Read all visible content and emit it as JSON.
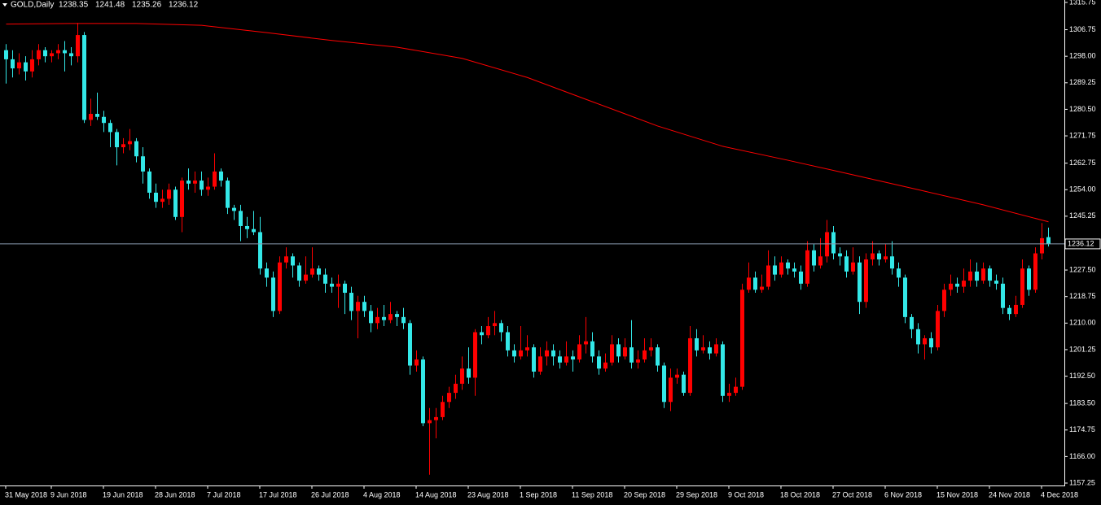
{
  "chart_data": {
    "type": "candlestick",
    "title": "GOLD,Daily",
    "up_color": "#ff0000",
    "down_color": "#33e8e8",
    "ylim": [
      1156.45,
      1316.55
    ],
    "yticks": [
      1315.75,
      1306.75,
      {
        "value": 1298,
        "label": "1298.00"
      },
      1289.25,
      {
        "value": 1280.5,
        "label": "1280.50"
      },
      1271.75,
      1262.75,
      {
        "value": 1254,
        "label": "1254.00"
      },
      1245.25,
      {
        "value": 1227.5,
        "label": "1227.50"
      },
      1218.75,
      {
        "value": 1210,
        "label": "1210.00"
      },
      1201.25,
      {
        "value": 1192.5,
        "label": "1192.50"
      },
      {
        "value": 1183.5,
        "label": "1183.50"
      },
      1174.75,
      {
        "value": 1166,
        "label": "1166.00"
      },
      1157.25
    ],
    "categories": [
      "31 May 2018",
      null,
      null,
      null,
      null,
      null,
      null,
      "9 Jun 2018",
      null,
      null,
      null,
      null,
      null,
      null,
      null,
      "19 Jun 2018",
      null,
      null,
      null,
      null,
      null,
      null,
      null,
      "28 Jun 2018",
      null,
      null,
      null,
      null,
      null,
      null,
      null,
      "7 Jul 2018",
      null,
      null,
      null,
      null,
      null,
      null,
      null,
      "17 Jul 2018",
      null,
      null,
      null,
      null,
      null,
      null,
      null,
      "26 Jul 2018",
      null,
      null,
      null,
      null,
      null,
      null,
      null,
      "4 Aug 2018",
      null,
      null,
      null,
      null,
      null,
      null,
      null,
      "14 Aug 2018",
      null,
      null,
      null,
      null,
      null,
      null,
      null,
      "23 Aug 2018",
      null,
      null,
      null,
      null,
      null,
      null,
      null,
      "1 Sep 2018",
      null,
      null,
      null,
      null,
      null,
      null,
      null,
      "11 Sep 2018",
      null,
      null,
      null,
      null,
      null,
      null,
      null,
      "20 Sep 2018",
      null,
      null,
      null,
      null,
      null,
      null,
      null,
      "29 Sep 2018",
      null,
      null,
      null,
      null,
      null,
      null,
      null,
      "9 Oct 2018",
      null,
      null,
      null,
      null,
      null,
      null,
      null,
      "18 Oct 2018",
      null,
      null,
      null,
      null,
      null,
      null,
      null,
      "27 Oct 2018",
      null,
      null,
      null,
      null,
      null,
      null,
      null,
      "6 Nov 2018",
      null,
      null,
      null,
      null,
      null,
      null,
      null,
      "15 Nov 2018",
      null,
      null,
      null,
      null,
      null,
      null,
      null,
      "24 Nov 2018",
      null,
      null,
      null,
      null,
      null,
      null,
      null,
      "4 Dec 2018",
      null
    ],
    "open": [
      1300,
      1297,
      1294,
      1296,
      1293,
      1297,
      1300,
      1298,
      1299,
      1300,
      1299,
      1298,
      1305,
      1277,
      1279,
      1278,
      1276,
      1273,
      1268,
      1269,
      1270,
      1265,
      1260,
      1253,
      1250,
      1251,
      1254,
      1245,
      1257,
      1256,
      1257,
      1254,
      1255,
      1260,
      1257,
      1248,
      1247,
      1242,
      1241,
      1240,
      1228,
      1225,
      1214,
      1230,
      1232,
      1229,
      1224,
      1226,
      1228,
      1226,
      1223,
      1222,
      1223,
      1220,
      1214,
      1217,
      1214,
      1210,
      1212,
      1211,
      1213,
      1212,
      1210,
      1196,
      1198,
      1177,
      1178,
      1179,
      1184,
      1187,
      1190,
      1195,
      1192,
      1207,
      1206,
      1209,
      1210,
      1207,
      1201,
      1199,
      1201,
      1202,
      1194,
      1199,
      1201,
      1199,
      1197,
      1199,
      1198,
      1203,
      1204,
      1199,
      1195,
      1197,
      1203,
      1199,
      1202,
      1197,
      1198,
      1201,
      1202,
      1196,
      1184,
      1192,
      1193,
      1187,
      1205,
      1201,
      1202,
      1200,
      1203,
      1186,
      1187,
      1189,
      1221,
      1225,
      1221,
      1222,
      1229,
      1226,
      1230,
      1228,
      1227,
      1223,
      1234,
      1229,
      1232,
      1240,
      1233,
      1232,
      1227,
      1230,
      1217,
      1231,
      1233,
      1231,
      1232,
      1228,
      1225,
      1212,
      1208,
      1203,
      1205,
      1202,
      1214,
      1221,
      1223,
      1222,
      1224,
      1227,
      1224,
      1228,
      1224,
      1223,
      1215,
      1213,
      1216,
      1228,
      1221,
      1233,
      1238.35
    ],
    "high": [
      1302,
      1300,
      1299,
      1298,
      1300,
      1302,
      1301,
      1300,
      1302,
      1303,
      1301,
      1309,
      1306,
      1284,
      1286,
      1280,
      1277,
      1274,
      1271,
      1274,
      1271,
      1268,
      1261,
      1256,
      1254,
      1256,
      1255,
      1258,
      1261,
      1260,
      1260,
      1258,
      1266,
      1261,
      1258,
      1249,
      1249,
      1245,
      1247,
      1245,
      1230,
      1227,
      1232,
      1235,
      1233,
      1230,
      1232,
      1235,
      1229,
      1228,
      1225,
      1226,
      1224,
      1222,
      1219,
      1219,
      1216,
      1215,
      1216,
      1217,
      1214,
      1215,
      1211,
      1201,
      1199,
      1182,
      1182,
      1186,
      1189,
      1193,
      1199,
      1202,
      1208,
      1209,
      1212,
      1214,
      1211,
      1209,
      1203,
      1209,
      1206,
      1203,
      1202,
      1204,
      1203,
      1201,
      1204,
      1201,
      1206,
      1212,
      1207,
      1201,
      1200,
      1206,
      1205,
      1205,
      1211,
      1201,
      1205,
      1205,
      1203,
      1197,
      1195,
      1195,
      1194,
      1209,
      1208,
      1206,
      1204,
      1205,
      1204,
      1190,
      1192,
      1223,
      1230,
      1227,
      1226,
      1234,
      1232,
      1232,
      1231,
      1230,
      1229,
      1237,
      1236,
      1238,
      1244,
      1242,
      1235,
      1234,
      1235,
      1232,
      1233,
      1237,
      1234,
      1236,
      1237,
      1230,
      1226,
      1213,
      1210,
      1206,
      1207,
      1216,
      1223,
      1226,
      1225,
      1228,
      1231,
      1230,
      1230,
      1229,
      1226,
      1225,
      1216,
      1219,
      1231,
      1229,
      1235,
      1243,
      1241.48
    ],
    "low": [
      1289,
      1291,
      1292,
      1290,
      1291,
      1295,
      1296,
      1296,
      1297,
      1293,
      1295,
      1296,
      1276,
      1275,
      1277,
      1273,
      1268,
      1262,
      1266,
      1267,
      1263,
      1256,
      1251,
      1248,
      1248,
      1249,
      1244,
      1240,
      1254,
      1253,
      1252,
      1252,
      1254,
      1255,
      1246,
      1244,
      1237,
      1238,
      1239,
      1226,
      1222,
      1212,
      1213,
      1228,
      1225,
      1222,
      1223,
      1225,
      1224,
      1220,
      1220,
      1215,
      1213,
      1211,
      1205,
      1212,
      1207,
      1208,
      1209,
      1210,
      1209,
      1208,
      1193,
      1194,
      1176,
      1160,
      1172,
      1178,
      1182,
      1185,
      1188,
      1190,
      1186,
      1203,
      1205,
      1206,
      1204,
      1199,
      1197,
      1198,
      1199,
      1192,
      1193,
      1196,
      1196,
      1195,
      1196,
      1194,
      1197,
      1200,
      1197,
      1193,
      1194,
      1196,
      1197,
      1198,
      1195,
      1195,
      1197,
      1199,
      1194,
      1182,
      1181,
      1190,
      1186,
      1186,
      1199,
      1200,
      1198,
      1199,
      1184,
      1184,
      1186,
      1188,
      1220,
      1220,
      1220,
      1221,
      1224,
      1225,
      1226,
      1225,
      1221,
      1222,
      1227,
      1228,
      1230,
      1231,
      1229,
      1225,
      1226,
      1213,
      1215,
      1229,
      1229,
      1230,
      1226,
      1222,
      1210,
      1205,
      1200,
      1198,
      1200,
      1201,
      1212,
      1219,
      1220,
      1220,
      1222,
      1222,
      1223,
      1222,
      1221,
      1213,
      1211,
      1212,
      1215,
      1219,
      1220,
      1231,
      1235.26
    ],
    "close": [
      1297,
      1294,
      1296,
      1293,
      1297,
      1300,
      1298,
      1299,
      1300,
      1299,
      1298,
      1305,
      1277,
      1279,
      1278,
      1276,
      1273,
      1268,
      1269,
      1270,
      1265,
      1260,
      1253,
      1250,
      1251,
      1254,
      1245,
      1257,
      1256,
      1257,
      1254,
      1255,
      1260,
      1257,
      1248,
      1247,
      1242,
      1241,
      1240,
      1228,
      1225,
      1214,
      1230,
      1232,
      1229,
      1224,
      1226,
      1228,
      1226,
      1223,
      1222,
      1223,
      1220,
      1214,
      1217,
      1214,
      1210,
      1212,
      1211,
      1213,
      1212,
      1210,
      1196,
      1198,
      1177,
      1178,
      1179,
      1184,
      1187,
      1190,
      1195,
      1192,
      1207,
      1206,
      1209,
      1210,
      1207,
      1201,
      1199,
      1201,
      1202,
      1194,
      1199,
      1201,
      1199,
      1197,
      1199,
      1198,
      1203,
      1204,
      1199,
      1195,
      1197,
      1203,
      1199,
      1202,
      1197,
      1198,
      1201,
      1202,
      1196,
      1184,
      1192,
      1193,
      1187,
      1205,
      1201,
      1202,
      1200,
      1203,
      1186,
      1187,
      1189,
      1221,
      1225,
      1221,
      1222,
      1229,
      1226,
      1230,
      1228,
      1227,
      1223,
      1234,
      1229,
      1232,
      1240,
      1233,
      1232,
      1227,
      1230,
      1217,
      1231,
      1233,
      1231,
      1232,
      1228,
      1225,
      1212,
      1208,
      1203,
      1205,
      1202,
      1214,
      1221,
      1223,
      1222,
      1224,
      1227,
      1224,
      1228,
      1224,
      1223,
      1215,
      1213,
      1216,
      1228,
      1221,
      1233,
      1238,
      1236.12
    ],
    "overlay": {
      "color": "#ff0000",
      "x": [
        0,
        10,
        20,
        30,
        40,
        50,
        60,
        70,
        80,
        90,
        100,
        110,
        120,
        130,
        140,
        150,
        160
      ],
      "values": [
        1308.6,
        1308.8,
        1308.8,
        1308.2,
        1305.8,
        1303.2,
        1301,
        1297.3,
        1291,
        1283,
        1275,
        1268.3,
        1263.7,
        1258.9,
        1254,
        1249,
        1243.4
      ]
    },
    "price_line_color": "#8a9bb0"
  }
}
